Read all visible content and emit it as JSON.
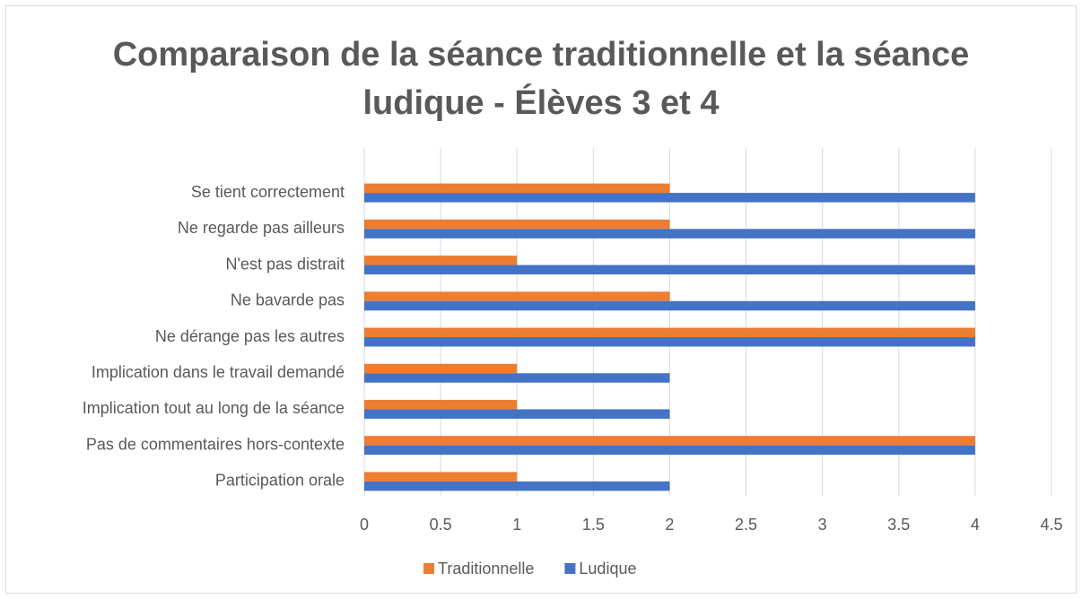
{
  "chart_data": {
    "type": "bar",
    "orientation": "horizontal",
    "title": "Comparaison de la séance traditionnelle et la séance ludique - Élèves 3 et 4",
    "categories": [
      "Se tient correctement",
      "Ne regarde pas ailleurs",
      "N'est pas distrait",
      "Ne bavarde pas",
      "Ne dérange pas les autres",
      "Implication dans le travail demandé",
      "Implication tout au long de la séance",
      "Pas de commentaires hors-contexte",
      "Participation orale"
    ],
    "series": [
      {
        "name": "Traditionnelle",
        "color": "#ed7d31",
        "values": [
          2,
          2,
          1,
          2,
          4,
          1,
          1,
          4,
          1
        ]
      },
      {
        "name": "Ludique",
        "color": "#4472c4",
        "values": [
          4,
          4,
          4,
          4,
          4,
          2,
          2,
          4,
          2
        ]
      }
    ],
    "xlim": [
      0,
      4.5
    ],
    "xticks": [
      0,
      0.5,
      1,
      1.5,
      2,
      2.5,
      3,
      3.5,
      4,
      4.5
    ],
    "grid": true,
    "legend": "bottom"
  }
}
